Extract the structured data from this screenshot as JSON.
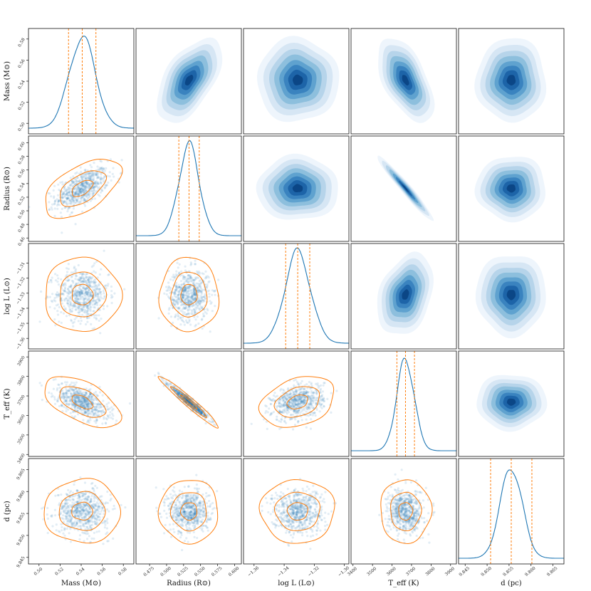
{
  "chart_data": {
    "type": "corner",
    "parameters": [
      {
        "key": "mass",
        "label": "Mass (M⊙)",
        "range": [
          0.49,
          0.59
        ],
        "ticks": [
          0.5,
          0.52,
          0.54,
          0.56,
          0.58
        ],
        "tick_labels": [
          "0.50",
          "0.52",
          "0.54",
          "0.56",
          "0.58"
        ],
        "median": 0.541,
        "lower": 0.528,
        "upper": 0.554,
        "std": 0.0125
      },
      {
        "key": "radius",
        "label": "Radius (R⊙)",
        "range": [
          0.455,
          0.61
        ],
        "ticks": [
          0.475,
          0.5,
          0.525,
          0.55,
          0.575,
          0.6
        ],
        "tick_labels": [
          "0.475",
          "0.500",
          "0.525",
          "0.550",
          "0.575",
          "0.600"
        ],
        "y_ticks": [
          0.46,
          0.48,
          0.5,
          0.52,
          0.54,
          0.56,
          0.58,
          0.6
        ],
        "y_tick_labels": [
          "0.46",
          "0.48",
          "0.50",
          "0.52",
          "0.54",
          "0.56",
          "0.58",
          "0.60"
        ],
        "median": 0.533,
        "lower": 0.518,
        "upper": 0.548,
        "std": 0.015
      },
      {
        "key": "logL",
        "label": "log L (L⊙)",
        "range": [
          -1.367,
          -1.297
        ],
        "ticks": [
          -1.36,
          -1.34,
          -1.32,
          -1.3
        ],
        "tick_labels": [
          "−1.36",
          "−1.34",
          "−1.32",
          "−1.30"
        ],
        "y_ticks": [
          -1.31,
          -1.32,
          -1.33,
          -1.34,
          -1.35,
          -1.36
        ],
        "y_tick_labels": [
          "−1.31",
          "−1.32",
          "−1.33",
          "−1.34",
          "−1.35",
          "−1.36"
        ],
        "median": -1.331,
        "lower": -1.339,
        "upper": -1.323,
        "std": 0.0085
      },
      {
        "key": "teff",
        "label": "T_eff (K)",
        "range": [
          3390,
          3930
        ],
        "ticks": [
          3400,
          3500,
          3600,
          3700,
          3800,
          3900
        ],
        "tick_labels": [
          "3400",
          "3500",
          "3600",
          "3700",
          "3800",
          "3900"
        ],
        "y_ticks": [
          3400,
          3500,
          3600,
          3700,
          3800,
          3900
        ],
        "y_tick_labels": [
          "3400",
          "3500",
          "3600",
          "3700",
          "3800",
          "3900"
        ],
        "median": 3669,
        "lower": 3625,
        "upper": 3715,
        "std": 45
      },
      {
        "key": "d",
        "label": "d (pc)",
        "range": [
          9.8435,
          9.8675
        ],
        "ticks": [
          9.845,
          9.85,
          9.855,
          9.86,
          9.865
        ],
        "tick_labels": [
          "9.845",
          "9.850",
          "9.855",
          "9.860",
          "9.865"
        ],
        "y_ticks": [
          9.845,
          9.85,
          9.855,
          9.86,
          9.865
        ],
        "y_tick_labels": [
          "9.845",
          "9.850",
          "9.855",
          "9.860",
          "9.865"
        ],
        "median": 9.8555,
        "lower": 9.8508,
        "upper": 9.8602,
        "std": 0.0025
      }
    ],
    "correlations": [
      [
        1.0,
        0.55,
        0.0,
        -0.55,
        0.0
      ],
      [
        0.55,
        1.0,
        0.0,
        -0.97,
        0.0
      ],
      [
        0.0,
        0.0,
        1.0,
        0.3,
        0.0
      ],
      [
        -0.55,
        -0.97,
        0.3,
        1.0,
        0.0
      ],
      [
        0.0,
        0.0,
        0.0,
        0.0,
        1.0
      ]
    ],
    "lower_panels": "scatter with contours",
    "upper_panels": "filled density (kde)",
    "diagonal": "1D kde with dashed quantile lines",
    "colors": {
      "scatter": "#1f77b4",
      "contour": "#ff7f0e",
      "kde_line": "#1f77b4",
      "quantile": "#ff7f0e",
      "fill": [
        "#eef5fc",
        "#d6e6f4",
        "#b6d4ea",
        "#8dbfdd",
        "#5fa2cf",
        "#3a83bf",
        "#1d64a8",
        "#0b4686"
      ]
    }
  }
}
